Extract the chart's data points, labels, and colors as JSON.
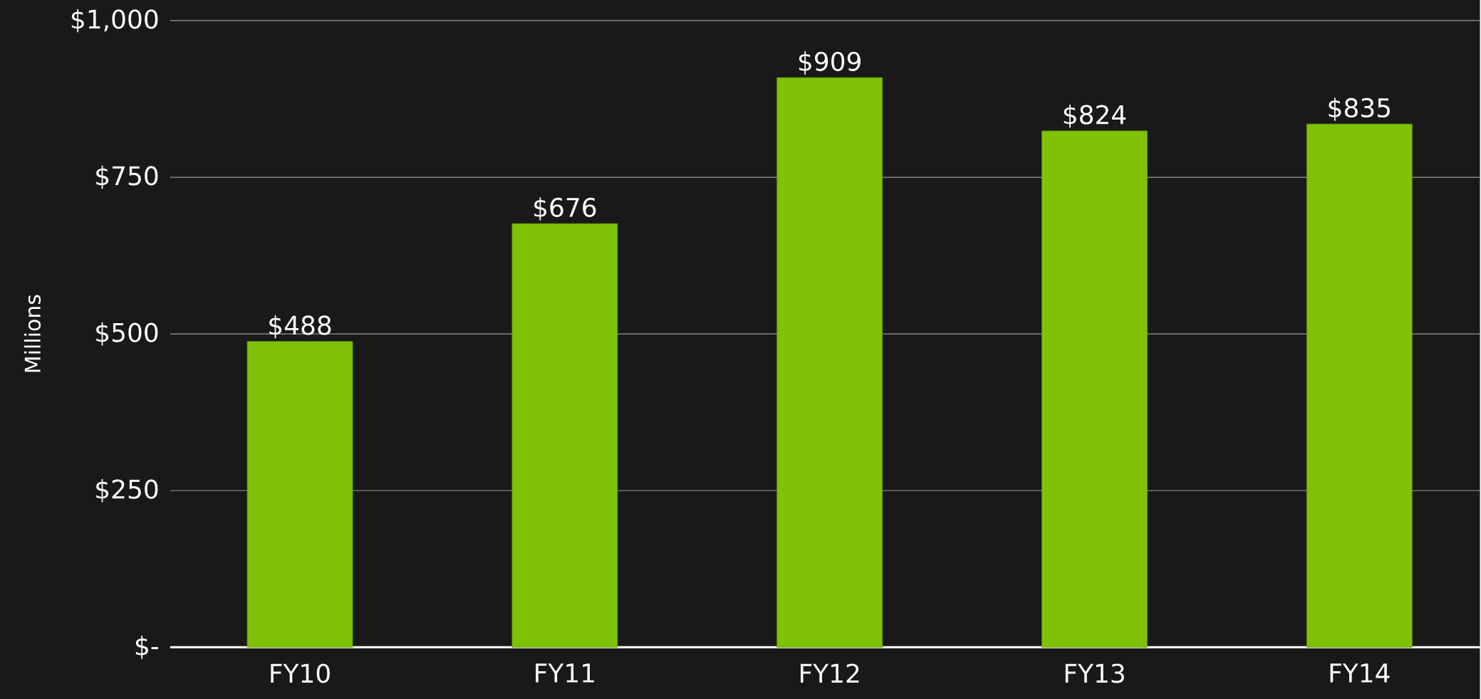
{
  "chart_data": {
    "type": "bar",
    "ylabel": "Millions",
    "categories": [
      "FY10",
      "FY11",
      "FY12",
      "FY13",
      "FY14"
    ],
    "values": [
      488,
      676,
      909,
      824,
      835
    ],
    "value_labels": [
      "$488",
      "$676",
      "$909",
      "$824",
      "$835"
    ],
    "color": "#7fc104",
    "ylim": [
      0,
      1000
    ],
    "yticks": [
      {
        "value": 0,
        "label": "$-"
      },
      {
        "value": 250,
        "label": "$250"
      },
      {
        "value": 500,
        "label": "$500"
      },
      {
        "value": 750,
        "label": "$750"
      },
      {
        "value": 1000,
        "label": "$1,000"
      }
    ],
    "grid": "y"
  }
}
